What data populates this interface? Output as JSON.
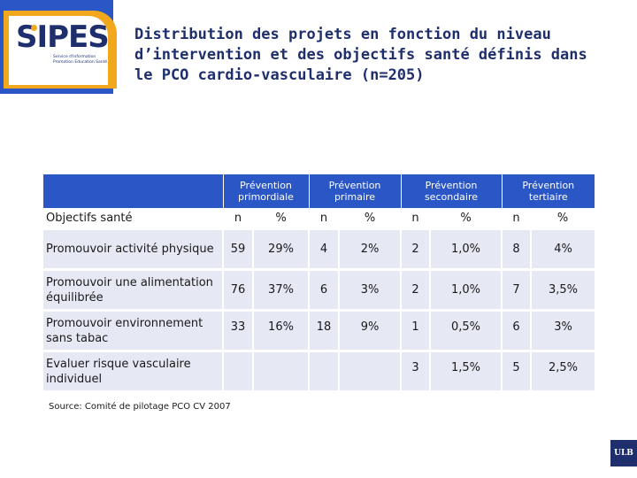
{
  "logo": {
    "text": "SIPES",
    "subtitle_lines": [
      "Service d'Information",
      "Promotion Education Santé"
    ]
  },
  "title": "Distribution des projets en fonction du niveau d’intervention et des objectifs santé définis dans le PCO cardio-vasculaire (n=205)",
  "table": {
    "group_headers": [
      "Prévention primordiale",
      "Prévention primaire",
      "Prévention secondaire",
      "Prévention tertiaire"
    ],
    "row_header": "Objectifs santé",
    "sub_headers": [
      "n",
      "%",
      "n",
      "%",
      "n",
      "%",
      "n",
      "%"
    ],
    "rows": [
      {
        "label": "Promouvoir activité physique",
        "values": [
          "59",
          "29%",
          "4",
          "2%",
          "2",
          "1,0%",
          "8",
          "4%"
        ]
      },
      {
        "label": "Promouvoir une alimentation équilibrée",
        "values": [
          "76",
          "37%",
          "6",
          "3%",
          "2",
          "1,0%",
          "7",
          "3,5%"
        ]
      },
      {
        "label": "Promouvoir environnement sans tabac",
        "values": [
          "33",
          "16%",
          "18",
          "9%",
          "1",
          "0,5%",
          "6",
          "3%"
        ]
      },
      {
        "label": "Evaluer risque vasculaire individuel",
        "values": [
          "",
          "",
          "",
          "",
          "3",
          "1,5%",
          "5",
          "2,5%"
        ]
      }
    ]
  },
  "source": "Source: Comité de pilotage PCO CV 2007",
  "badge": "ULB",
  "colors": {
    "header_blue": "#2a56c6",
    "title_navy": "#1f2f6e",
    "row_bg": "#e6e8f4",
    "logo_orange": "#f2a81d"
  }
}
